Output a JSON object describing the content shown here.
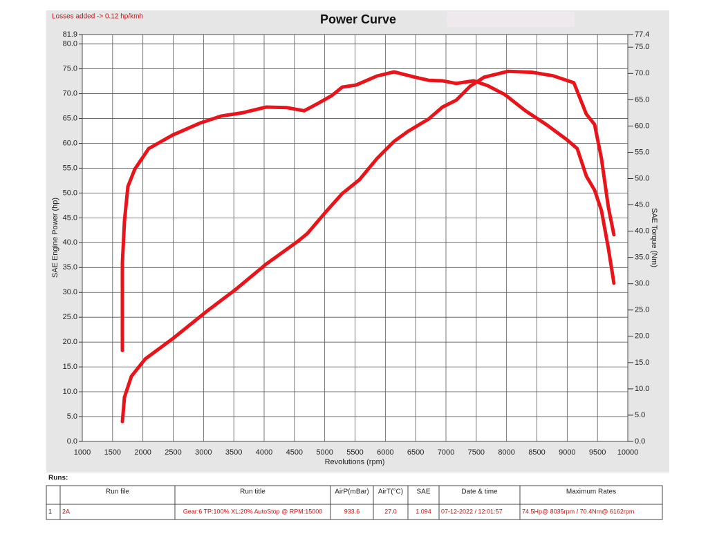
{
  "chart_data": {
    "type": "line",
    "title": "Power Curve",
    "annotation": "Losses added -> 0.12 hp/kmh",
    "x_label": "Revolutions (rpm)",
    "y_label": "SAE Engine Power (hp)",
    "y2_label": "SAE Torque (Nm)",
    "xlim": [
      1000,
      10000
    ],
    "xticks": [
      1000,
      1500,
      2000,
      2500,
      3000,
      3500,
      4000,
      4500,
      5000,
      5500,
      6000,
      6500,
      7000,
      7500,
      8000,
      8500,
      9000,
      9500,
      10000
    ],
    "ylim": [
      0,
      81.9
    ],
    "yticks": [
      {
        "value": 0,
        "label": "0.0"
      },
      {
        "value": 5,
        "label": "5.0"
      },
      {
        "value": 10,
        "label": "10.0"
      },
      {
        "value": 15,
        "label": "15.0"
      },
      {
        "value": 20,
        "label": "20.0"
      },
      {
        "value": 25,
        "label": "25.0"
      },
      {
        "value": 30,
        "label": "30.0"
      },
      {
        "value": 35,
        "label": "35.0"
      },
      {
        "value": 40,
        "label": "40.0"
      },
      {
        "value": 45,
        "label": "45.0"
      },
      {
        "value": 50,
        "label": "50.0"
      },
      {
        "value": 55,
        "label": "55.0"
      },
      {
        "value": 60,
        "label": "60.0"
      },
      {
        "value": 65,
        "label": "65.0"
      },
      {
        "value": 70,
        "label": "70.0"
      },
      {
        "value": 75,
        "label": "75.0"
      },
      {
        "value": 80,
        "label": "80.0"
      },
      81.9
    ],
    "y2lim": [
      0,
      77.4
    ],
    "y2ticks": [
      {
        "value": 0,
        "label": "0.0"
      },
      {
        "value": 5,
        "label": "5.0"
      },
      {
        "value": 10,
        "label": "10.0"
      },
      {
        "value": 15,
        "label": "15.0"
      },
      {
        "value": 20,
        "label": "20.0"
      },
      {
        "value": 25,
        "label": "25.0"
      },
      {
        "value": 30,
        "label": "30.0"
      },
      {
        "value": 35,
        "label": "35.0"
      },
      {
        "value": 40,
        "label": "40.0"
      },
      {
        "value": 45,
        "label": "45.0"
      },
      {
        "value": 50,
        "label": "50.0"
      },
      {
        "value": 55,
        "label": "55.0"
      },
      {
        "value": 60,
        "label": "60.0"
      },
      {
        "value": 65,
        "label": "65.0"
      },
      {
        "value": 70,
        "label": "70.0"
      },
      {
        "value": 75,
        "label": "75.0"
      },
      77.4
    ],
    "grid": true,
    "series": [
      {
        "color": "#e8141a",
        "axis": "y",
        "x": [
          1662,
          1696,
          1810,
          2038,
          2494,
          3065,
          3521,
          4034,
          4547,
          4718,
          5003,
          5289,
          5574,
          5859,
          6144,
          6372,
          6714,
          6942,
          7171,
          7399,
          7627,
          8026,
          8425,
          8767,
          9110,
          9315,
          9452,
          9566,
          9680,
          9771
        ],
        "values": [
          4.0,
          8.9,
          13.1,
          16.6,
          20.7,
          26.3,
          30.5,
          35.7,
          40.2,
          41.9,
          46.0,
          49.9,
          52.7,
          56.9,
          60.4,
          62.4,
          64.9,
          67.3,
          68.7,
          71.5,
          73.3,
          74.5,
          74.3,
          73.6,
          72.2,
          65.9,
          63.8,
          56.9,
          47.1,
          41.6
        ]
      },
      {
        "color": "#e8141a",
        "axis": "y2",
        "x": [
          1662,
          1662,
          1696,
          1753,
          1867,
          2095,
          2494,
          2951,
          3293,
          3635,
          4034,
          4376,
          4661,
          4889,
          5117,
          5289,
          5517,
          5859,
          6144,
          6486,
          6714,
          6942,
          7171,
          7456,
          7684,
          7969,
          8311,
          8653,
          8995,
          9166,
          9315,
          9452,
          9566,
          9680,
          9771
        ],
        "values": [
          17.3,
          34.0,
          41.9,
          48.5,
          51.8,
          55.7,
          58.3,
          60.6,
          61.9,
          62.5,
          63.6,
          63.5,
          62.9,
          64.3,
          65.8,
          67.4,
          67.8,
          69.5,
          70.3,
          69.3,
          68.7,
          68.6,
          68.1,
          68.6,
          67.7,
          66.0,
          62.9,
          60.3,
          57.4,
          55.7,
          50.5,
          47.8,
          43.9,
          36.7,
          30.1
        ]
      }
    ]
  },
  "runs": {
    "title": "Runs:",
    "columns": [
      "Run file",
      "Run title",
      "AirP(mBar)",
      "AirT(°C)",
      "SAE",
      "Date & time",
      "Maximum Rates"
    ],
    "rows": [
      [
        "1",
        "2A",
        "Gear:6 TP:100% XL:20% AutoStop @ RPM:15000",
        "933.6",
        "27.0",
        "1.094",
        "07-12-2022 / 12:01:57",
        "74.5Hp@ 8035rpm / 70.4Nm@ 6162rpm"
      ]
    ]
  }
}
